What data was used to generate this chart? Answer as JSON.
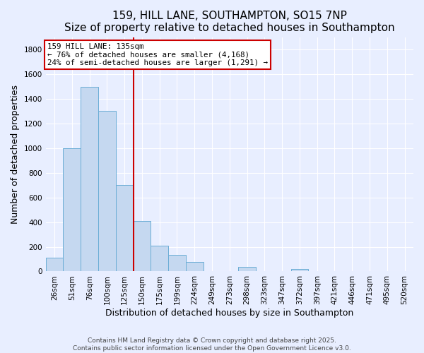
{
  "title": "159, HILL LANE, SOUTHAMPTON, SO15 7NP",
  "subtitle": "Size of property relative to detached houses in Southampton",
  "xlabel": "Distribution of detached houses by size in Southampton",
  "ylabel": "Number of detached properties",
  "categories": [
    "26sqm",
    "51sqm",
    "76sqm",
    "100sqm",
    "125sqm",
    "150sqm",
    "175sqm",
    "199sqm",
    "224sqm",
    "249sqm",
    "273sqm",
    "298sqm",
    "323sqm",
    "347sqm",
    "372sqm",
    "397sqm",
    "421sqm",
    "446sqm",
    "471sqm",
    "495sqm",
    "520sqm"
  ],
  "values": [
    110,
    1000,
    1500,
    1300,
    700,
    410,
    210,
    135,
    75,
    0,
    0,
    35,
    0,
    0,
    20,
    0,
    0,
    0,
    0,
    0,
    0
  ],
  "bar_color": "#c5d8f0",
  "bar_edge_color": "#6aadd5",
  "vline_color": "#cc0000",
  "vline_pos": 4.5,
  "annotation_line1": "159 HILL LANE: 135sqm",
  "annotation_line2": "← 76% of detached houses are smaller (4,168)",
  "annotation_line3": "24% of semi-detached houses are larger (1,291) →",
  "annotation_box_color": "#ffffff",
  "annotation_box_edge": "#cc0000",
  "ylim": [
    0,
    1900
  ],
  "yticks": [
    0,
    200,
    400,
    600,
    800,
    1000,
    1200,
    1400,
    1600,
    1800
  ],
  "footer1": "Contains HM Land Registry data © Crown copyright and database right 2025.",
  "footer2": "Contains public sector information licensed under the Open Government Licence v3.0.",
  "bg_color": "#e8eeff",
  "grid_color": "#ffffff",
  "title_fontsize": 11,
  "subtitle_fontsize": 10,
  "axis_label_fontsize": 9,
  "tick_fontsize": 7.5,
  "annotation_fontsize": 7.8,
  "footer_fontsize": 6.5
}
